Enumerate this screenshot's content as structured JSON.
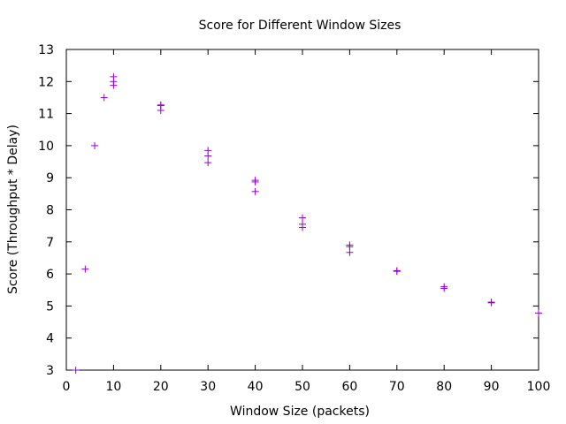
{
  "chart_data": {
    "type": "scatter",
    "title": "Score for Different Window Sizes",
    "xlabel": "Window Size (packets)",
    "ylabel": "Score (Throughput * Delay)",
    "xlim": [
      0,
      100
    ],
    "ylim": [
      3,
      13
    ],
    "xticks": [
      0,
      10,
      20,
      30,
      40,
      50,
      60,
      70,
      80,
      90,
      100
    ],
    "yticks": [
      3,
      4,
      5,
      6,
      7,
      8,
      9,
      10,
      11,
      12,
      13
    ],
    "grid": false,
    "legend": "none",
    "marker": "plus",
    "color": "#9400d3",
    "points": [
      {
        "x": 2,
        "y": 3.0
      },
      {
        "x": 4,
        "y": 6.15
      },
      {
        "x": 6,
        "y": 10.0
      },
      {
        "x": 8,
        "y": 11.5
      },
      {
        "x": 10,
        "y": 12.15
      },
      {
        "x": 10,
        "y": 12.0
      },
      {
        "x": 10,
        "y": 11.88
      },
      {
        "x": 20,
        "y": 11.27
      },
      {
        "x": 20,
        "y": 11.25
      },
      {
        "x": 20,
        "y": 11.1
      },
      {
        "x": 30,
        "y": 9.85
      },
      {
        "x": 30,
        "y": 9.68
      },
      {
        "x": 30,
        "y": 9.47
      },
      {
        "x": 40,
        "y": 8.92
      },
      {
        "x": 40,
        "y": 8.87
      },
      {
        "x": 40,
        "y": 8.57
      },
      {
        "x": 50,
        "y": 7.75
      },
      {
        "x": 50,
        "y": 7.55
      },
      {
        "x": 50,
        "y": 7.45
      },
      {
        "x": 60,
        "y": 6.9
      },
      {
        "x": 60,
        "y": 6.85
      },
      {
        "x": 60,
        "y": 6.67
      },
      {
        "x": 70,
        "y": 6.1
      },
      {
        "x": 70,
        "y": 6.08
      },
      {
        "x": 80,
        "y": 5.6
      },
      {
        "x": 80,
        "y": 5.55
      },
      {
        "x": 90,
        "y": 5.12
      },
      {
        "x": 90,
        "y": 5.1
      },
      {
        "x": 100,
        "y": 4.78
      }
    ]
  }
}
